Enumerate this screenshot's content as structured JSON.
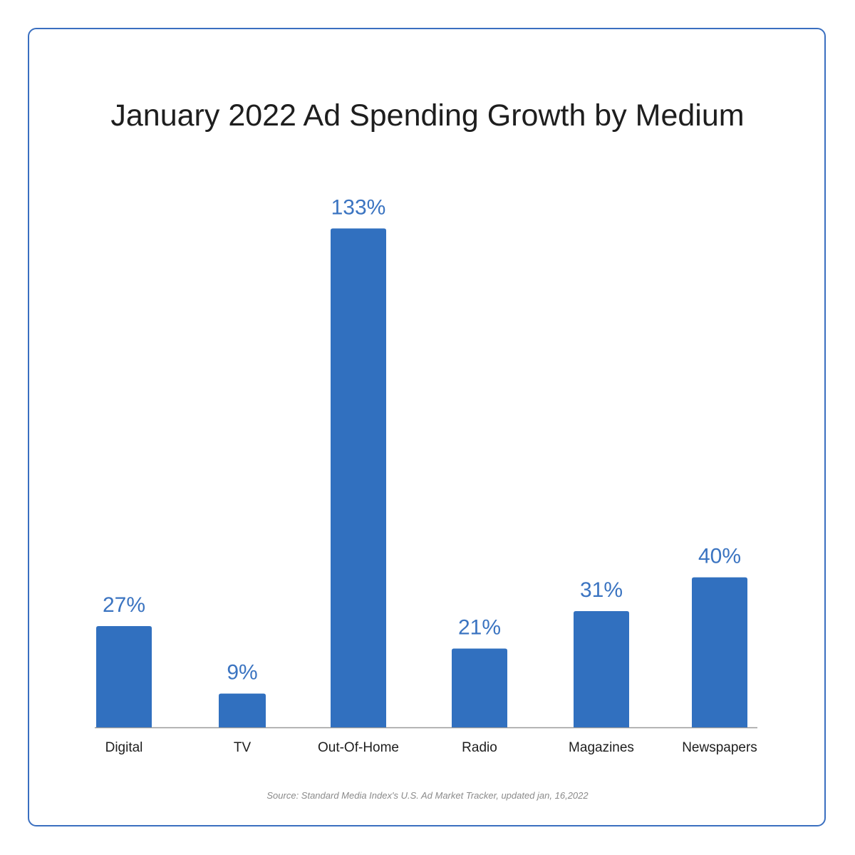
{
  "chart_data": {
    "type": "bar",
    "title": "January 2022 Ad Spending Growth by Medium",
    "categories": [
      "Digital",
      "TV",
      "Out-Of-Home",
      "Radio",
      "Magazines",
      "Newspapers"
    ],
    "values": [
      27,
      9,
      133,
      21,
      31,
      40
    ],
    "data_labels": [
      "27%",
      "9%",
      "133%",
      "21%",
      "31%",
      "40%"
    ],
    "xlabel": "",
    "ylabel": "",
    "grid": false,
    "legend": "none",
    "bar_color": "#3170bf",
    "label_color": "#3b74c1",
    "source": "Source: Standard Media Index's U.S. Ad Market Tracker, updated jan, 16,2022"
  },
  "colors": {
    "border": "#3a6fc0",
    "bar": "#3170bf",
    "data_label": "#3b74c1",
    "axis": "#9a9a9a",
    "text": "#1e1e1e"
  }
}
